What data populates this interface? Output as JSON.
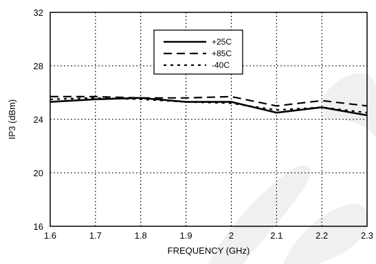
{
  "chart_data": {
    "type": "line",
    "xlabel": "FREQUENCY (GHz)",
    "ylabel": "IP3 (dBm)",
    "xlim": [
      1.6,
      2.3
    ],
    "ylim": [
      16,
      32
    ],
    "grid": true,
    "legend_position": "top-center",
    "x_ticks": [
      "1.6",
      "1.7",
      "1.8",
      "1.9",
      "2",
      "2.1",
      "2.2",
      "2.3"
    ],
    "y_ticks": [
      "16",
      "20",
      "24",
      "28",
      "32"
    ],
    "x_tick_values": [
      1.6,
      1.7,
      1.8,
      1.9,
      2.0,
      2.1,
      2.2,
      2.3
    ],
    "y_tick_values": [
      16,
      20,
      24,
      28,
      32
    ],
    "x": [
      1.6,
      1.7,
      1.8,
      1.9,
      2.0,
      2.1,
      2.2,
      2.3
    ],
    "series": [
      {
        "name": "+25C",
        "style": "solid",
        "values": [
          25.3,
          25.5,
          25.6,
          25.3,
          25.3,
          24.5,
          24.9,
          24.3
        ]
      },
      {
        "name": "+85C",
        "style": "dashed",
        "values": [
          25.7,
          25.7,
          25.6,
          25.6,
          25.7,
          25.0,
          25.4,
          25.0
        ]
      },
      {
        "name": "-40C",
        "style": "dotted",
        "values": [
          25.5,
          25.6,
          25.5,
          25.3,
          25.2,
          24.7,
          24.9,
          24.5
        ]
      }
    ]
  },
  "colors": {
    "line": "#000000",
    "grid": "#000000",
    "watermark": "#000000"
  }
}
